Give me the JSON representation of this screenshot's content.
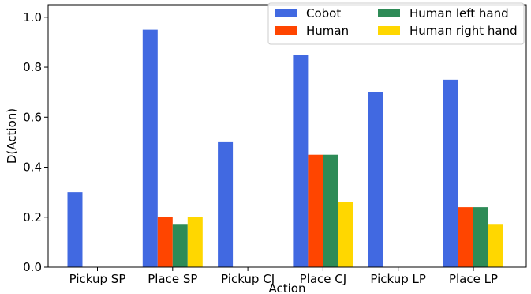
{
  "chart_data": {
    "type": "bar",
    "categories": [
      "Pickup SP",
      "Place SP",
      "Pickup CJ",
      "Place CJ",
      "Pickup LP",
      "Place LP"
    ],
    "series": [
      {
        "name": "Cobot",
        "color": "#4169e1",
        "values": [
          0.3,
          0.95,
          0.5,
          0.85,
          0.7,
          0.75
        ]
      },
      {
        "name": "Human",
        "color": "#ff4500",
        "values": [
          0,
          0.2,
          0,
          0.45,
          0,
          0.24
        ]
      },
      {
        "name": "Human left hand",
        "color": "#2e8b57",
        "values": [
          0,
          0.17,
          0,
          0.45,
          0,
          0.24
        ]
      },
      {
        "name": "Human right hand",
        "color": "#ffd700",
        "values": [
          0,
          0.2,
          0,
          0.26,
          0,
          0.17
        ]
      }
    ],
    "xlabel": "Action",
    "ylabel": "D(Action)",
    "ylim": [
      0,
      1.05
    ],
    "yticks": [
      "0.0",
      "0.2",
      "0.4",
      "0.6",
      "0.8",
      "1.0"
    ],
    "legend": "top-right",
    "grid": false
  }
}
